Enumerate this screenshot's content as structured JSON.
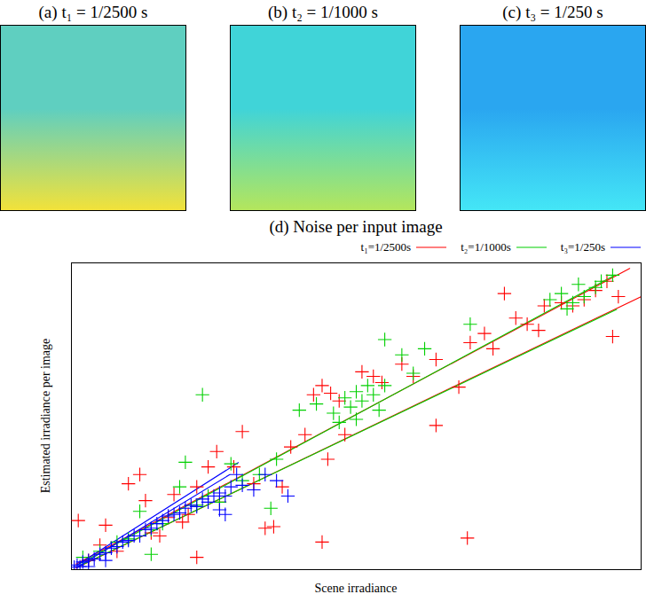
{
  "panels": [
    {
      "title": "(a) t₁ = 1/2500 s",
      "colors": [
        "#5fcfc0",
        "#f2e23a"
      ]
    },
    {
      "title": "(b) t₂ = 1/1000 s",
      "colors": [
        "#40d4d8",
        "#b4e65c"
      ]
    },
    {
      "title": "(c) t₃ = 1/250 s",
      "colors": [
        "#2aa6f0",
        "#44e6f6"
      ]
    }
  ],
  "chart_data": {
    "type": "scatter",
    "title": "(d) Noise per input image",
    "x_label": "Scene irradiance",
    "y_label": "Estimated irradiance per image",
    "xlim": [
      0,
      100
    ],
    "ylim": [
      0,
      100
    ],
    "xticks": [],
    "yticks": [],
    "tick_labels": false,
    "legend": "top",
    "marker": "plus",
    "line_style": "solid",
    "series": [
      {
        "name": "t₁=1/2500s",
        "color": "#ff0000",
        "x": [
          1.2,
          3,
          5,
          6,
          8,
          10,
          12,
          13,
          14,
          15.5,
          17,
          18,
          19.5,
          20.5,
          22,
          22,
          24,
          25.5,
          26,
          28.5,
          30,
          32,
          34,
          35.5,
          37,
          38.5,
          41,
          42.5,
          44,
          44,
          45,
          45.5,
          47,
          48,
          51,
          53,
          54.5,
          58,
          60,
          64,
          64,
          68,
          69.5,
          70,
          72.5,
          74,
          76,
          78,
          80,
          82,
          83,
          86,
          88,
          90,
          92,
          94,
          95,
          96
        ],
        "values": [
          16,
          3,
          8,
          14.5,
          6,
          28,
          31,
          22.5,
          12,
          11,
          17,
          24.5,
          15.5,
          18,
          27,
          4,
          33.5,
          38.5,
          22,
          33.5,
          45,
          28,
          13.5,
          14,
          27,
          40,
          44,
          57,
          60,
          9,
          36,
          57.5,
          55,
          44,
          64.5,
          63,
          61,
          67,
          63,
          68.5,
          47,
          59.5,
          10.3,
          74,
          77,
          72,
          90,
          82,
          80,
          78,
          86,
          87,
          86,
          88,
          91,
          94,
          76,
          89
        ],
        "bounds": [
          {
            "x": [
              0.8,
              98
            ],
            "y": [
              1.8,
              98.2
            ]
          },
          {
            "x": [
              0.8,
              100
            ],
            "y": [
              0.5,
              89
            ]
          }
        ]
      },
      {
        "name": "t₂=1/1000s",
        "color": "#00d000",
        "x": [
          2,
          5,
          8,
          10,
          12,
          14,
          14,
          16,
          19,
          20,
          22,
          23,
          24,
          26,
          28,
          30,
          33,
          35,
          36,
          40,
          43,
          46,
          47,
          48,
          49,
          50,
          50,
          51,
          52,
          53,
          54,
          55,
          55,
          58,
          60,
          62,
          70,
          84,
          86,
          87,
          88,
          89,
          90,
          92,
          93,
          95
        ],
        "values": [
          4,
          6,
          9,
          10,
          19,
          13,
          5,
          15,
          27,
          35,
          21,
          57,
          24,
          22,
          34.5,
          29,
          31,
          20,
          36,
          52,
          54,
          51,
          48,
          56,
          53,
          58,
          49,
          55,
          60,
          57,
          52,
          60,
          75,
          70,
          64,
          72,
          80,
          88,
          90,
          85,
          87,
          93,
          89,
          92,
          94,
          96
        ],
        "bounds": [
          {
            "x": [
              1,
              95.4
            ],
            "y": [
              1.5,
              96
            ]
          },
          {
            "x": [
              1,
              95.7
            ],
            "y": [
              0.8,
              84.8
            ]
          }
        ]
      },
      {
        "name": "t₃=1/250s",
        "color": "#0000ff",
        "x": [
          0.5,
          1,
          1.5,
          2,
          3,
          3,
          4,
          5,
          6,
          6,
          7,
          8,
          9,
          10,
          11,
          12,
          13,
          14,
          15,
          16,
          17,
          18,
          19,
          20,
          21,
          22,
          23,
          24,
          25,
          26,
          26,
          27,
          27,
          28,
          29,
          30,
          32,
          34,
          36,
          38
        ],
        "values": [
          0.8,
          1.5,
          1,
          2.5,
          3,
          1,
          3.5,
          5,
          5.5,
          3,
          7,
          7.5,
          9,
          9.5,
          11,
          11,
          13,
          13.5,
          15,
          16,
          17.5,
          18,
          18.5,
          20,
          21,
          20.5,
          23,
          22,
          24,
          25,
          19.5,
          24,
          18,
          27,
          31,
          27.5,
          26,
          31,
          29,
          24
        ],
        "bounds": [
          {
            "x": [
              1,
              29.3
            ],
            "y": [
              1.5,
              34.9
            ]
          },
          {
            "x": [
              1,
              27.8
            ],
            "y": [
              0.8,
              31
            ]
          }
        ]
      }
    ]
  }
}
